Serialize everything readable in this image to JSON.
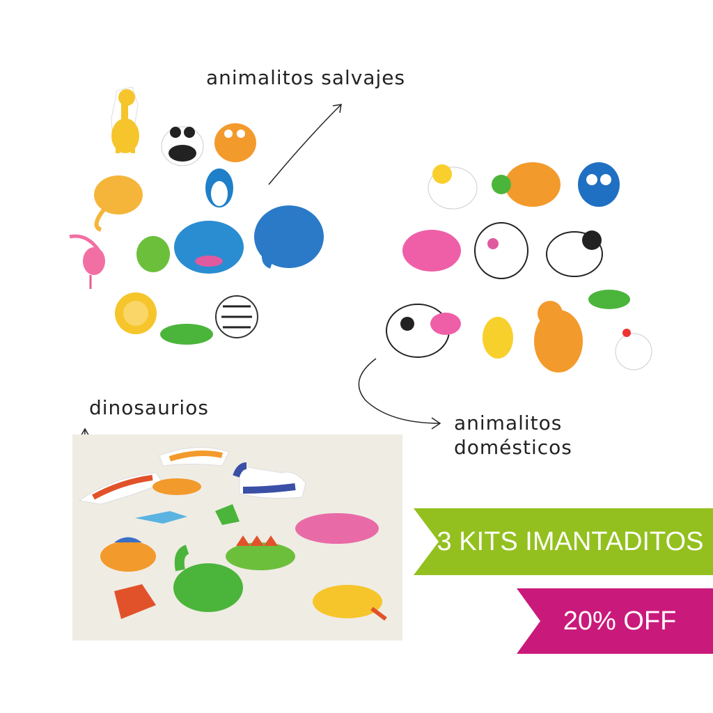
{
  "labels": {
    "wild": "animalitos  salvajes",
    "dinos": "dinosaurios",
    "domestic_line1": "animalitos",
    "domestic_line2": "domésticos"
  },
  "banners": {
    "kits": "3 KITS IMANTADITOS",
    "discount": "20% OFF"
  },
  "colors": {
    "green_banner": "#93c01f",
    "magenta_banner": "#c91a7b",
    "text": "#222222",
    "background": "#ffffff"
  },
  "icons": {
    "wild_group": "wild-animal-magnets-image",
    "domestic_group": "farm-animal-magnets-image",
    "dino_group": "dinosaur-magnets-image"
  }
}
